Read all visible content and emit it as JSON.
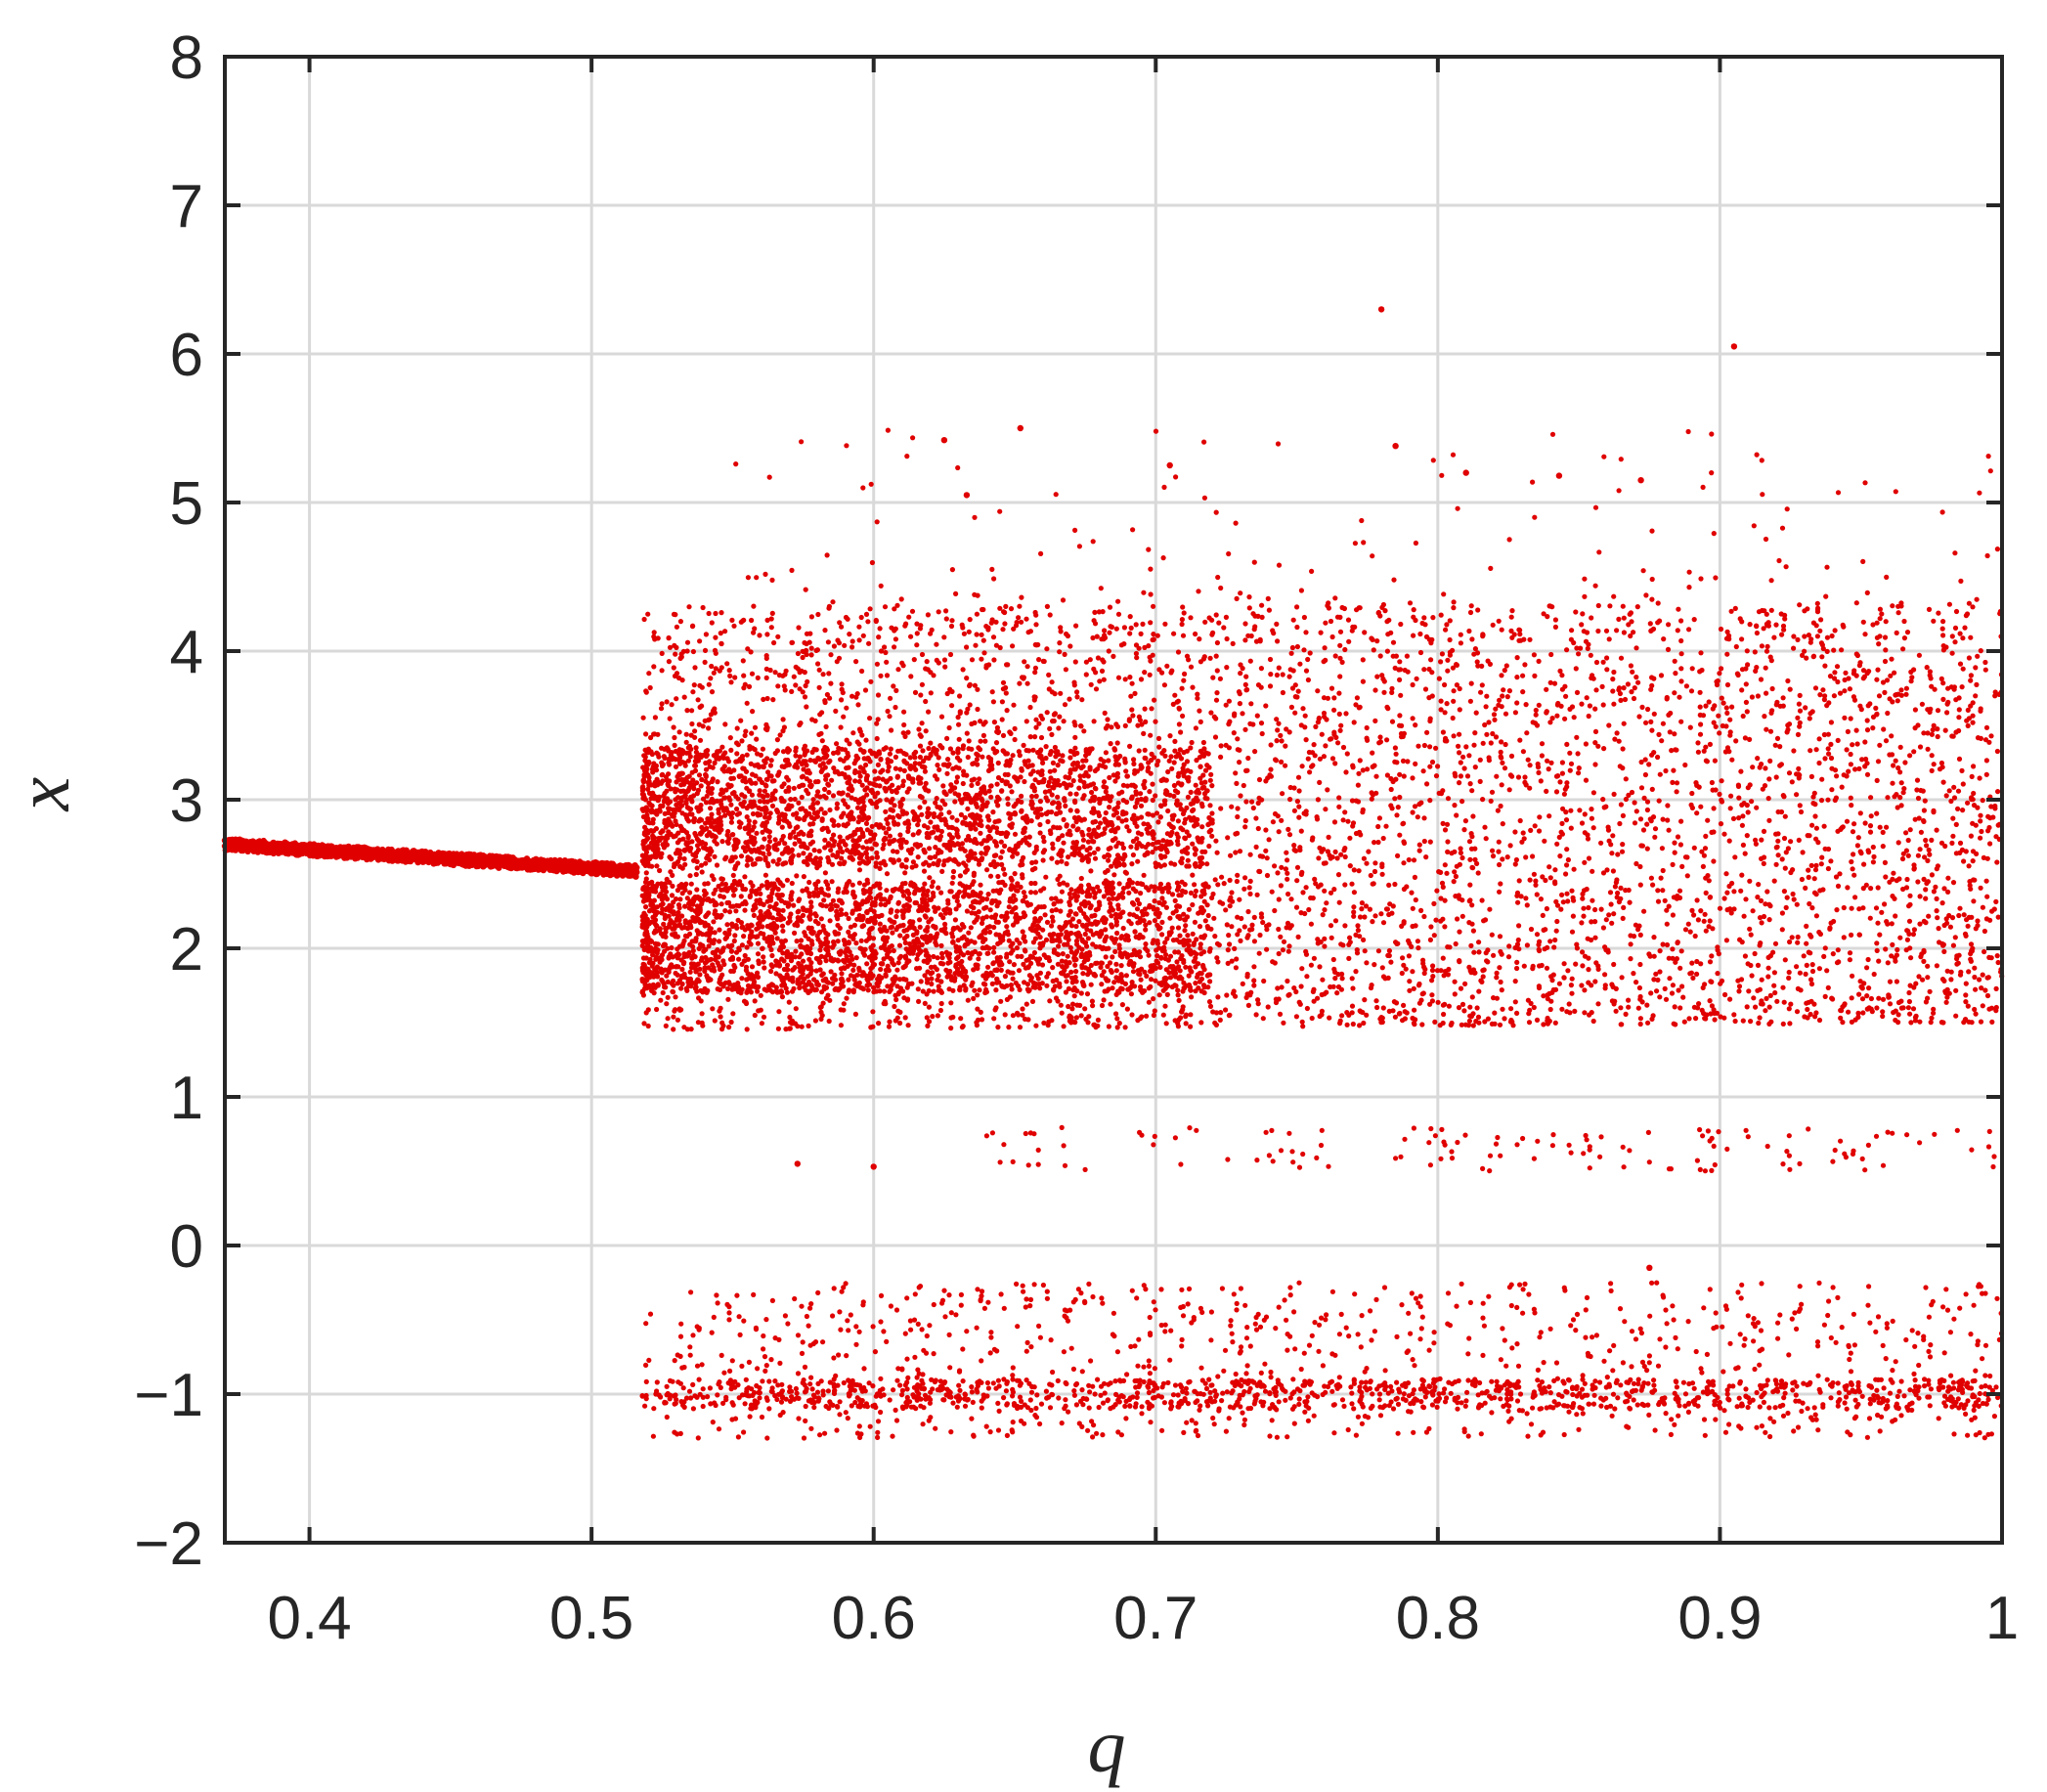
{
  "chart_data": {
    "type": "scatter",
    "title": "",
    "xlabel": "q",
    "ylabel": "x",
    "xlim": [
      0.37,
      1.0
    ],
    "ylim": [
      -2,
      8
    ],
    "xticks": [
      0.4,
      0.5,
      0.6,
      0.7,
      0.8,
      0.9,
      1.0
    ],
    "xtick_labels": [
      "0.4",
      "0.5",
      "0.6",
      "0.7",
      "0.8",
      "0.9",
      "1"
    ],
    "yticks": [
      -2,
      -1,
      0,
      1,
      2,
      3,
      4,
      5,
      6,
      7,
      8
    ],
    "ytick_labels": [
      "−2",
      "−1",
      "0",
      "1",
      "2",
      "3",
      "4",
      "5",
      "6",
      "7",
      "8"
    ],
    "grid": true,
    "marker_color": "#e00000",
    "grid_color": "#d9d9d9",
    "axis_color": "#262626",
    "series": [
      {
        "description": "bifurcation diagram points",
        "regions": [
          {
            "kind": "fixed_branch",
            "q_range": [
              0.37,
              0.516
            ],
            "x_at_start": 2.7,
            "x_at_end": 2.52
          },
          {
            "kind": "dense_band",
            "q_range": [
              0.518,
              1.0
            ],
            "x_range": [
              1.45,
              4.3
            ]
          },
          {
            "kind": "dense_core",
            "q_range": [
              0.518,
              0.72
            ],
            "x_range": [
              1.7,
              3.3
            ]
          },
          {
            "kind": "sparse_upper",
            "q_range": [
              0.55,
              1.0
            ],
            "x_range": [
              4.3,
              5.5
            ]
          },
          {
            "kind": "sparse_middle",
            "q_range": [
              0.57,
              1.0
            ],
            "x_range": [
              0.5,
              0.8
            ]
          },
          {
            "kind": "lower_band",
            "q_range": [
              0.518,
              1.0
            ],
            "x_range": [
              -1.3,
              -0.25
            ]
          }
        ],
        "outliers": [
          {
            "x": 0.78,
            "y": 6.3
          },
          {
            "x": 0.905,
            "y": 6.05
          },
          {
            "x": 0.652,
            "y": 5.5
          },
          {
            "x": 0.625,
            "y": 5.42
          },
          {
            "x": 0.785,
            "y": 5.38
          },
          {
            "x": 0.705,
            "y": 5.25
          },
          {
            "x": 0.81,
            "y": 5.2
          },
          {
            "x": 0.843,
            "y": 5.18
          },
          {
            "x": 0.872,
            "y": 5.15
          },
          {
            "x": 0.633,
            "y": 5.05
          },
          {
            "x": 0.573,
            "y": 0.55
          },
          {
            "x": 0.6,
            "y": 0.53
          },
          {
            "x": 0.875,
            "y": -0.15
          }
        ]
      }
    ]
  }
}
